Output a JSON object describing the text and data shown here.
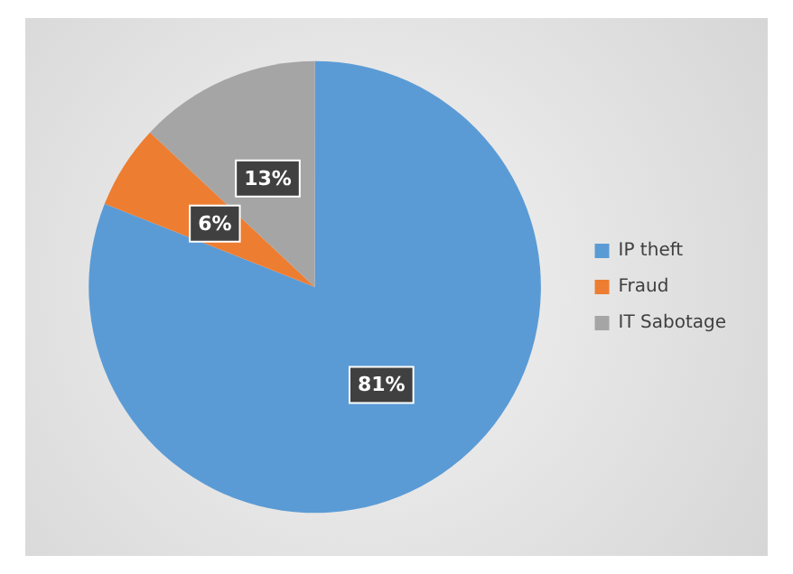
{
  "chart_data": {
    "type": "pie",
    "categories": [
      "IP theft",
      "Fraud",
      "IT Sabotage"
    ],
    "values": [
      81,
      6,
      13
    ],
    "colors": [
      "#5b9bd5",
      "#ed7d31",
      "#a5a5a5"
    ],
    "value_labels": [
      "81%",
      "6%",
      "13%"
    ],
    "legend": "right"
  }
}
